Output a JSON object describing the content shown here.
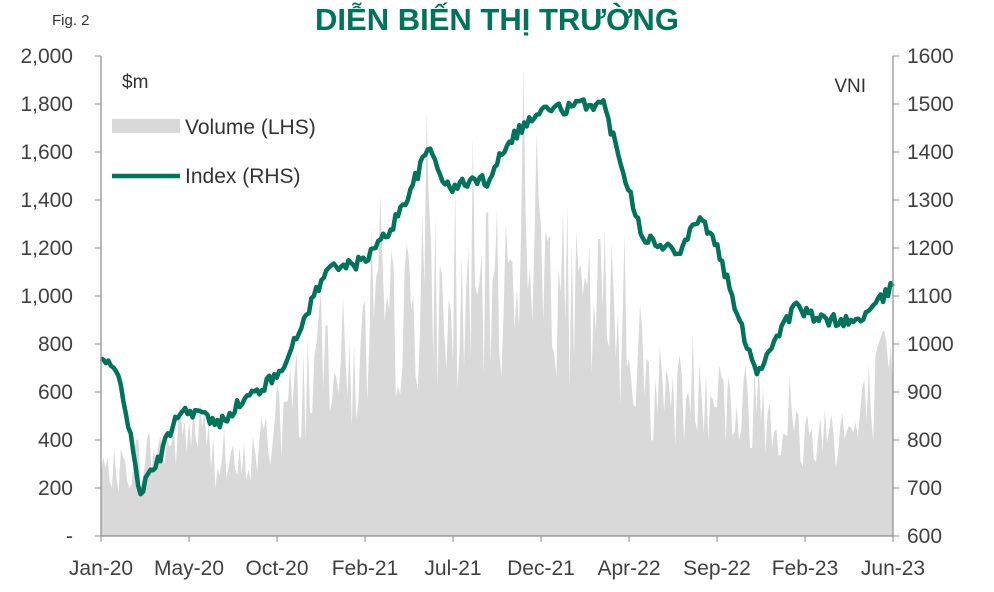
{
  "figure_label": "Fig. 2",
  "chart_data": {
    "type": "area+line",
    "title": "DIỄN BIẾN THỊ TRƯỜNG",
    "left_axis": {
      "unit_label": "$m",
      "range": [
        0,
        2000
      ],
      "ticks": [
        0,
        200,
        400,
        600,
        800,
        1000,
        1200,
        1400,
        1600,
        1800,
        2000
      ],
      "tick_labels": [
        "-",
        "200",
        "400",
        "600",
        "800",
        "1,000",
        "1,200",
        "1,400",
        "1,600",
        "1,800",
        "2,000"
      ]
    },
    "right_axis": {
      "unit_label": "VNI",
      "range": [
        600,
        1600
      ],
      "ticks": [
        600,
        700,
        800,
        900,
        1000,
        1100,
        1200,
        1300,
        1400,
        1500,
        1600
      ],
      "tick_labels": [
        "600",
        "700",
        "800",
        "900",
        "1000",
        "1100",
        "1200",
        "1300",
        "1400",
        "1500",
        "1600"
      ]
    },
    "x_axis": {
      "range": [
        "2020-01",
        "2023-06"
      ],
      "tick_labels": [
        "Jan-20",
        "May-20",
        "Oct-20",
        "Feb-21",
        "Jul-21",
        "Dec-21",
        "Apr-22",
        "Sep-22",
        "Feb-23",
        "Jun-23"
      ]
    },
    "legend": {
      "placement": "top-left",
      "entries": [
        {
          "label": "Volume (LHS)",
          "color": "#d9d9d9"
        },
        {
          "label": "Index (RHS)",
          "color": "#00745a"
        }
      ]
    },
    "series": [
      {
        "name": "Volume (LHS)",
        "axis": "left",
        "color": "#d9d9d9",
        "points": [
          [
            "2020-01",
            250
          ],
          [
            "2020-02",
            280
          ],
          [
            "2020-03",
            330
          ],
          [
            "2020-04",
            360
          ],
          [
            "2020-05",
            430
          ],
          [
            "2020-06",
            470
          ],
          [
            "2020-07",
            320
          ],
          [
            "2020-08",
            280
          ],
          [
            "2020-09",
            350
          ],
          [
            "2020-10",
            460
          ],
          [
            "2020-11",
            580
          ],
          [
            "2020-12",
            720
          ],
          [
            "2021-01",
            820
          ],
          [
            "2021-02",
            680
          ],
          [
            "2021-03",
            840
          ],
          [
            "2021-04",
            900
          ],
          [
            "2021-05",
            950
          ],
          [
            "2021-06",
            1080
          ],
          [
            "2021-07",
            880
          ],
          [
            "2021-08",
            940
          ],
          [
            "2021-09",
            1000
          ],
          [
            "2021-10",
            1080
          ],
          [
            "2021-11",
            1400
          ],
          [
            "2021-12",
            1180
          ],
          [
            "2022-01",
            1050
          ],
          [
            "2022-02",
            900
          ],
          [
            "2022-03",
            1000
          ],
          [
            "2022-04",
            900
          ],
          [
            "2022-05",
            670
          ],
          [
            "2022-06",
            620
          ],
          [
            "2022-07",
            580
          ],
          [
            "2022-08",
            690
          ],
          [
            "2022-09",
            620
          ],
          [
            "2022-10",
            500
          ],
          [
            "2022-11",
            620
          ],
          [
            "2022-12",
            500
          ],
          [
            "2023-01",
            420
          ],
          [
            "2023-02",
            430
          ],
          [
            "2023-03",
            470
          ],
          [
            "2023-04",
            430
          ],
          [
            "2023-05",
            600
          ],
          [
            "2023-06",
            700
          ]
        ]
      },
      {
        "name": "Index (RHS)",
        "axis": "right",
        "color": "#00745a",
        "points": [
          [
            "2020-01",
            970
          ],
          [
            "2020-02",
            930
          ],
          [
            "2020-03",
            690
          ],
          [
            "2020-04",
            760
          ],
          [
            "2020-05",
            860
          ],
          [
            "2020-06",
            860
          ],
          [
            "2020-07",
            830
          ],
          [
            "2020-08",
            870
          ],
          [
            "2020-09",
            900
          ],
          [
            "2020-10",
            930
          ],
          [
            "2020-11",
            1000
          ],
          [
            "2020-12",
            1100
          ],
          [
            "2021-01",
            1170
          ],
          [
            "2021-02",
            1160
          ],
          [
            "2021-03",
            1190
          ],
          [
            "2021-04",
            1240
          ],
          [
            "2021-05",
            1320
          ],
          [
            "2021-06",
            1410
          ],
          [
            "2021-07",
            1320
          ],
          [
            "2021-08",
            1340
          ],
          [
            "2021-09",
            1340
          ],
          [
            "2021-10",
            1420
          ],
          [
            "2021-11",
            1460
          ],
          [
            "2021-12",
            1490
          ],
          [
            "2022-01",
            1490
          ],
          [
            "2022-02",
            1500
          ],
          [
            "2022-03",
            1500
          ],
          [
            "2022-04",
            1370
          ],
          [
            "2022-05",
            1230
          ],
          [
            "2022-06",
            1200
          ],
          [
            "2022-07",
            1200
          ],
          [
            "2022-08",
            1270
          ],
          [
            "2022-09",
            1190
          ],
          [
            "2022-10",
            1050
          ],
          [
            "2022-11",
            940
          ],
          [
            "2022-12",
            1020
          ],
          [
            "2023-01",
            1080
          ],
          [
            "2023-02",
            1050
          ],
          [
            "2023-03",
            1050
          ],
          [
            "2023-04",
            1045
          ],
          [
            "2023-05",
            1075
          ],
          [
            "2023-06",
            1120
          ]
        ]
      }
    ]
  }
}
